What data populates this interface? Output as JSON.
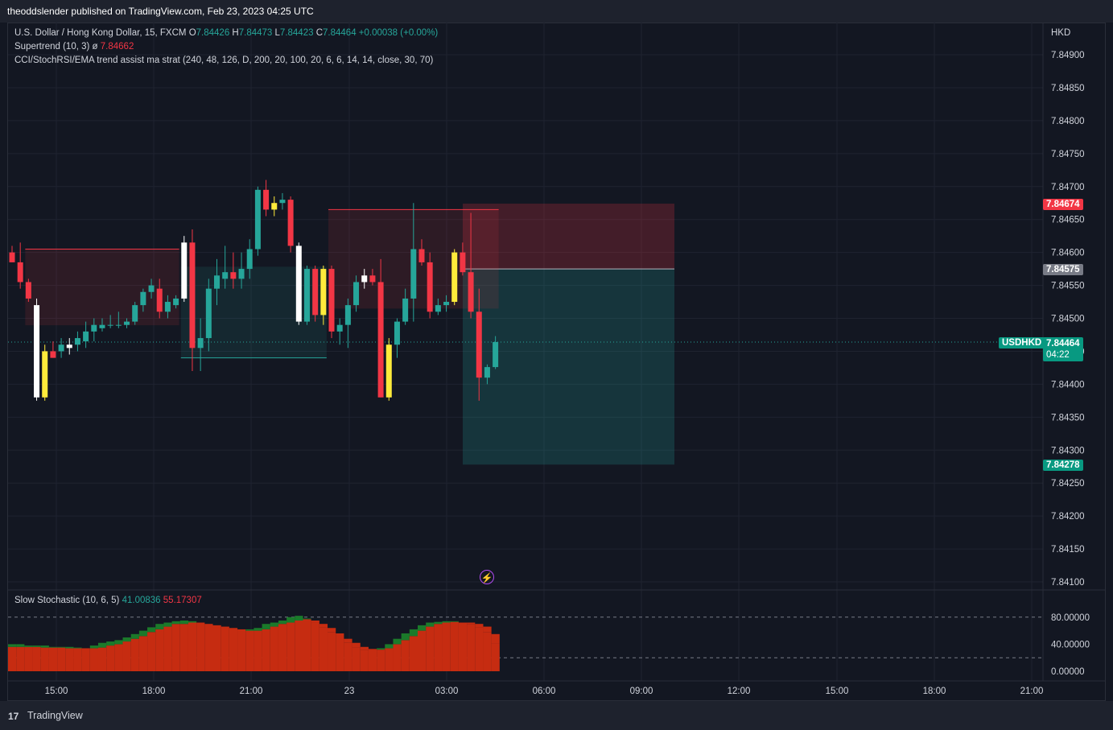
{
  "header": {
    "published": "theoddslender published on TradingView.com, Feb 23, 2023 04:25 UTC"
  },
  "legend": {
    "symbol": "U.S. Dollar / Hong Kong Dollar, 15, FXCM",
    "o_label": "O",
    "o_value": "7.84426",
    "h_label": "H",
    "h_value": "7.84473",
    "l_label": "L",
    "l_value": "7.84423",
    "c_label": "C",
    "c_value": "7.84464",
    "change": "+0.00038 (+0.00%)",
    "supertrend": "Supertrend (10, 3)",
    "supertrend_sym": "ø",
    "supertrend_value": "7.84662",
    "strategy": "CCI/StochRSI/EMA trend assist ma strat (240, 48, 126, D, 200, 20, 100, 20, 6, 6, 14, 14, close, 30, 70)",
    "stoch": "Slow Stochastic (10, 6, 5)",
    "stoch_k": "41.00836",
    "stoch_d": "55.17307"
  },
  "price_axis": {
    "currency": "HKD",
    "ticks": [
      "7.84900",
      "7.84850",
      "7.84800",
      "7.84750",
      "7.84700",
      "7.84650",
      "7.84600",
      "7.84550",
      "7.84500",
      "7.84450",
      "7.84400",
      "7.84350",
      "7.84300",
      "7.84250",
      "7.84200",
      "7.84150",
      "7.84100"
    ],
    "stop_label": "7.84674",
    "entry_label": "7.84575",
    "current_label": "7.84464",
    "countdown": "04:22",
    "target_label": "7.84278",
    "symbol_tag": "USDHKD"
  },
  "stoch_axis": {
    "ticks": [
      "80.00000",
      "40.00000",
      "0.00000"
    ]
  },
  "time_axis": {
    "ticks": [
      "15:00",
      "18:00",
      "21:00",
      "23",
      "03:00",
      "06:00",
      "09:00",
      "12:00",
      "15:00",
      "18:00",
      "21:00"
    ]
  },
  "footer": {
    "brand": "TradingView",
    "logo": "17"
  },
  "colors": {
    "bg": "#131722",
    "up": "#26a69a",
    "down": "#f23645",
    "signal": "#ffeb3b",
    "stop_zone": "#f23645",
    "target_zone": "#26a69a",
    "stoch_up": "#1b7a2a",
    "stoch_down": "#c62c11"
  },
  "chart_data": {
    "type": "candlestick",
    "ylim": [
      7.8409,
      7.8492
    ],
    "candles": [
      {
        "o": 7.846,
        "h": 7.8461,
        "l": 7.84585,
        "c": 7.84585
      },
      {
        "o": 7.84585,
        "h": 7.84615,
        "l": 7.84545,
        "c": 7.84555
      },
      {
        "o": 7.84555,
        "h": 7.8456,
        "l": 7.84525,
        "c": 7.8453
      },
      {
        "o": 7.8452,
        "h": 7.8453,
        "l": 7.84375,
        "c": 7.8438
      },
      {
        "o": 7.8438,
        "h": 7.8446,
        "l": 7.84375,
        "c": 7.8445
      },
      {
        "o": 7.8445,
        "h": 7.84465,
        "l": 7.8444,
        "c": 7.8444
      },
      {
        "o": 7.8445,
        "h": 7.8447,
        "l": 7.8444,
        "c": 7.8446
      },
      {
        "o": 7.84455,
        "h": 7.8447,
        "l": 7.84445,
        "c": 7.8446
      },
      {
        "o": 7.8446,
        "h": 7.8448,
        "l": 7.8445,
        "c": 7.8447
      },
      {
        "o": 7.84465,
        "h": 7.84495,
        "l": 7.84455,
        "c": 7.8448
      },
      {
        "o": 7.8448,
        "h": 7.845,
        "l": 7.84465,
        "c": 7.8449
      },
      {
        "o": 7.84485,
        "h": 7.845,
        "l": 7.8448,
        "c": 7.8449
      },
      {
        "o": 7.8449,
        "h": 7.84505,
        "l": 7.84485,
        "c": 7.8449
      },
      {
        "o": 7.8449,
        "h": 7.8451,
        "l": 7.84485,
        "c": 7.8449
      },
      {
        "o": 7.8449,
        "h": 7.845,
        "l": 7.84485,
        "c": 7.84495
      },
      {
        "o": 7.84495,
        "h": 7.84525,
        "l": 7.8449,
        "c": 7.8452
      },
      {
        "o": 7.8452,
        "h": 7.84545,
        "l": 7.8451,
        "c": 7.8454
      },
      {
        "o": 7.8454,
        "h": 7.8456,
        "l": 7.8453,
        "c": 7.8455
      },
      {
        "o": 7.84545,
        "h": 7.8456,
        "l": 7.845,
        "c": 7.8451
      },
      {
        "o": 7.8451,
        "h": 7.84535,
        "l": 7.845,
        "c": 7.84525
      },
      {
        "o": 7.8452,
        "h": 7.84535,
        "l": 7.84515,
        "c": 7.8453
      },
      {
        "o": 7.8453,
        "h": 7.84625,
        "l": 7.84525,
        "c": 7.84615
      },
      {
        "o": 7.84615,
        "h": 7.84635,
        "l": 7.8442,
        "c": 7.84455
      },
      {
        "o": 7.84455,
        "h": 7.845,
        "l": 7.8442,
        "c": 7.8447
      },
      {
        "o": 7.8447,
        "h": 7.8456,
        "l": 7.8445,
        "c": 7.84545
      },
      {
        "o": 7.84545,
        "h": 7.8459,
        "l": 7.8452,
        "c": 7.84565
      },
      {
        "o": 7.8456,
        "h": 7.8461,
        "l": 7.84545,
        "c": 7.8457
      },
      {
        "o": 7.8457,
        "h": 7.846,
        "l": 7.84545,
        "c": 7.8456
      },
      {
        "o": 7.8456,
        "h": 7.846,
        "l": 7.84545,
        "c": 7.84575
      },
      {
        "o": 7.84575,
        "h": 7.8462,
        "l": 7.8456,
        "c": 7.84605
      },
      {
        "o": 7.84605,
        "h": 7.847,
        "l": 7.84595,
        "c": 7.84695
      },
      {
        "o": 7.84695,
        "h": 7.8471,
        "l": 7.84655,
        "c": 7.84665
      },
      {
        "o": 7.84665,
        "h": 7.84685,
        "l": 7.84655,
        "c": 7.84675
      },
      {
        "o": 7.84675,
        "h": 7.8469,
        "l": 7.84665,
        "c": 7.8468
      },
      {
        "o": 7.8468,
        "h": 7.84685,
        "l": 7.846,
        "c": 7.8461
      },
      {
        "o": 7.8461,
        "h": 7.84615,
        "l": 7.8449,
        "c": 7.84495
      },
      {
        "o": 7.84495,
        "h": 7.8458,
        "l": 7.8449,
        "c": 7.84575
      },
      {
        "o": 7.84575,
        "h": 7.8458,
        "l": 7.84495,
        "c": 7.84505
      },
      {
        "o": 7.84505,
        "h": 7.8458,
        "l": 7.8449,
        "c": 7.84575
      },
      {
        "o": 7.84575,
        "h": 7.8458,
        "l": 7.8447,
        "c": 7.8448
      },
      {
        "o": 7.8448,
        "h": 7.845,
        "l": 7.8446,
        "c": 7.8449
      },
      {
        "o": 7.8449,
        "h": 7.8453,
        "l": 7.84455,
        "c": 7.8452
      },
      {
        "o": 7.8452,
        "h": 7.84565,
        "l": 7.8451,
        "c": 7.84555
      },
      {
        "o": 7.84555,
        "h": 7.84575,
        "l": 7.84545,
        "c": 7.84565
      },
      {
        "o": 7.84565,
        "h": 7.84575,
        "l": 7.8455,
        "c": 7.84555
      },
      {
        "o": 7.84555,
        "h": 7.8459,
        "l": 7.8438,
        "c": 7.8438
      },
      {
        "o": 7.8438,
        "h": 7.8447,
        "l": 7.84375,
        "c": 7.8446
      },
      {
        "o": 7.8446,
        "h": 7.845,
        "l": 7.8444,
        "c": 7.84495
      },
      {
        "o": 7.84495,
        "h": 7.84545,
        "l": 7.8449,
        "c": 7.8453
      },
      {
        "o": 7.8453,
        "h": 7.84675,
        "l": 7.84495,
        "c": 7.84605
      },
      {
        "o": 7.84605,
        "h": 7.8462,
        "l": 7.8458,
        "c": 7.84585
      },
      {
        "o": 7.84585,
        "h": 7.846,
        "l": 7.845,
        "c": 7.8451
      },
      {
        "o": 7.8451,
        "h": 7.8453,
        "l": 7.84505,
        "c": 7.8452
      },
      {
        "o": 7.8452,
        "h": 7.84535,
        "l": 7.8451,
        "c": 7.84525
      },
      {
        "o": 7.84525,
        "h": 7.84605,
        "l": 7.8452,
        "c": 7.846
      },
      {
        "o": 7.846,
        "h": 7.84615,
        "l": 7.84565,
        "c": 7.8457
      },
      {
        "o": 7.8457,
        "h": 7.8466,
        "l": 7.845,
        "c": 7.8451
      },
      {
        "o": 7.8451,
        "h": 7.84545,
        "l": 7.84375,
        "c": 7.8441
      },
      {
        "o": 7.8441,
        "h": 7.8443,
        "l": 7.844,
        "c": 7.84426
      },
      {
        "o": 7.84426,
        "h": 7.84473,
        "l": 7.84423,
        "c": 7.84464
      }
    ],
    "signal_candles": [
      3,
      4,
      7,
      21,
      32,
      35,
      38,
      43,
      46,
      54
    ],
    "supertrend": [
      {
        "start": 2,
        "end": 20,
        "level": 7.84605,
        "dir": "down"
      },
      {
        "start": 21,
        "end": 38,
        "level": 7.8444,
        "dir": "up"
      },
      {
        "start": 39,
        "end": 59,
        "level": 7.84665,
        "dir": "down"
      }
    ],
    "position": {
      "entry": 7.84575,
      "stop": 7.84674,
      "target": 7.84278,
      "start": 56,
      "end": 82
    },
    "stochastic": {
      "ylim": [
        0,
        100
      ],
      "levels": [
        80,
        20
      ],
      "k": [
        40,
        40,
        38,
        38,
        38,
        36,
        36,
        36,
        35,
        34,
        38,
        42,
        44,
        46,
        50,
        55,
        60,
        65,
        70,
        72,
        74,
        75,
        74,
        72,
        70,
        68,
        66,
        64,
        62,
        62,
        64,
        70,
        72,
        75,
        80,
        82,
        78,
        72,
        65,
        58,
        50,
        42,
        35,
        32,
        31,
        34,
        40,
        48,
        56,
        62,
        68,
        72,
        73,
        74,
        74,
        72,
        70,
        65,
        58,
        41
      ],
      "d": [
        36,
        36,
        36,
        36,
        35,
        35,
        35,
        34,
        34,
        34,
        34,
        35,
        38,
        40,
        44,
        48,
        52,
        58,
        62,
        66,
        70,
        70,
        72,
        72,
        70,
        68,
        66,
        64,
        62,
        60,
        60,
        62,
        66,
        70,
        72,
        75,
        77,
        75,
        70,
        64,
        56,
        48,
        42,
        36,
        33,
        32,
        34,
        40,
        46,
        52,
        60,
        66,
        70,
        72,
        73,
        72,
        72,
        70,
        66,
        55
      ]
    }
  }
}
